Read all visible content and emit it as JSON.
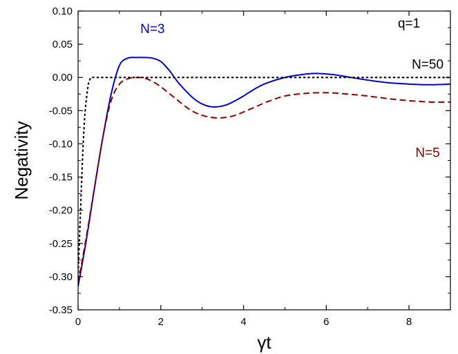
{
  "chart_data": {
    "type": "line",
    "title": "",
    "xlabel": "γt",
    "ylabel": "Negativity",
    "xlim": [
      0,
      9
    ],
    "ylim": [
      -0.35,
      0.1
    ],
    "x_ticks": [
      0,
      2,
      4,
      6,
      8
    ],
    "x_tick_labels": [
      "0",
      "2",
      "4",
      "6",
      "8"
    ],
    "y_ticks": [
      -0.35,
      -0.3,
      -0.25,
      -0.2,
      -0.15,
      -0.1,
      -0.05,
      0.0,
      0.05,
      0.1
    ],
    "y_tick_labels": [
      "-0.35",
      "-0.30",
      "-0.25",
      "-0.20",
      "-0.15",
      "-0.10",
      "-0.05",
      "0.00",
      "0.05",
      "0.10"
    ],
    "grid": false,
    "annotations": [
      {
        "id": "q",
        "text": "q=1",
        "x": 8.0,
        "y": 0.075,
        "color": "#000000"
      }
    ],
    "series": [
      {
        "name": "N=3",
        "color": "#0000cc",
        "style": "solid",
        "label_pos": {
          "x": 1.8,
          "y": 0.067
        },
        "x": [
          0,
          0.2,
          0.4,
          0.6,
          0.8,
          1.0,
          1.2,
          1.4,
          1.6,
          1.8,
          2.0,
          2.2,
          2.4,
          2.6,
          2.8,
          3.0,
          3.2,
          3.4,
          3.6,
          3.8,
          4.0,
          4.2,
          4.5,
          5.0,
          5.5,
          5.8,
          6.2,
          6.6,
          7.0,
          7.5,
          8.0,
          8.5,
          9.0
        ],
        "y": [
          -0.315,
          -0.245,
          -0.165,
          -0.09,
          -0.025,
          0.018,
          0.029,
          0.03,
          0.03,
          0.029,
          0.024,
          0.011,
          -0.006,
          -0.02,
          -0.032,
          -0.04,
          -0.044,
          -0.044,
          -0.041,
          -0.035,
          -0.028,
          -0.02,
          -0.01,
          0.0,
          0.005,
          0.006,
          0.004,
          0.0,
          -0.004,
          -0.008,
          -0.01,
          -0.011,
          -0.01
        ]
      },
      {
        "name": "N=5",
        "color": "#8b0000",
        "style": "dashed",
        "label_pos": {
          "x": 8.45,
          "y": -0.12
        },
        "x": [
          0,
          0.2,
          0.4,
          0.6,
          0.8,
          1.0,
          1.2,
          1.4,
          1.6,
          1.8,
          2.0,
          2.2,
          2.4,
          2.6,
          2.8,
          3.0,
          3.2,
          3.4,
          3.6,
          3.8,
          4.0,
          4.3,
          4.6,
          5.0,
          5.5,
          6.0,
          6.5,
          7.0,
          7.5,
          8.0,
          8.5,
          9.0
        ],
        "y": [
          -0.31,
          -0.24,
          -0.165,
          -0.09,
          -0.035,
          -0.01,
          -0.002,
          0.0,
          -0.001,
          -0.006,
          -0.014,
          -0.024,
          -0.034,
          -0.044,
          -0.052,
          -0.057,
          -0.06,
          -0.061,
          -0.06,
          -0.057,
          -0.052,
          -0.044,
          -0.036,
          -0.028,
          -0.024,
          -0.023,
          -0.025,
          -0.028,
          -0.032,
          -0.035,
          -0.037,
          -0.037
        ]
      },
      {
        "name": "N=50",
        "color": "#000000",
        "style": "dotted",
        "label_pos": {
          "x": 8.45,
          "y": 0.013
        },
        "x": [
          0,
          0.03,
          0.06,
          0.09,
          0.12,
          0.15,
          0.18,
          0.21,
          0.25,
          0.28,
          0.32,
          0.4,
          1.0,
          3.0,
          5.0,
          7.0,
          9.0
        ],
        "y": [
          -0.3,
          -0.25,
          -0.2,
          -0.15,
          -0.105,
          -0.07,
          -0.045,
          -0.028,
          -0.01,
          -0.004,
          0.0,
          0.0,
          0.0,
          0.0,
          0.0,
          0.0,
          0.0
        ]
      }
    ]
  }
}
